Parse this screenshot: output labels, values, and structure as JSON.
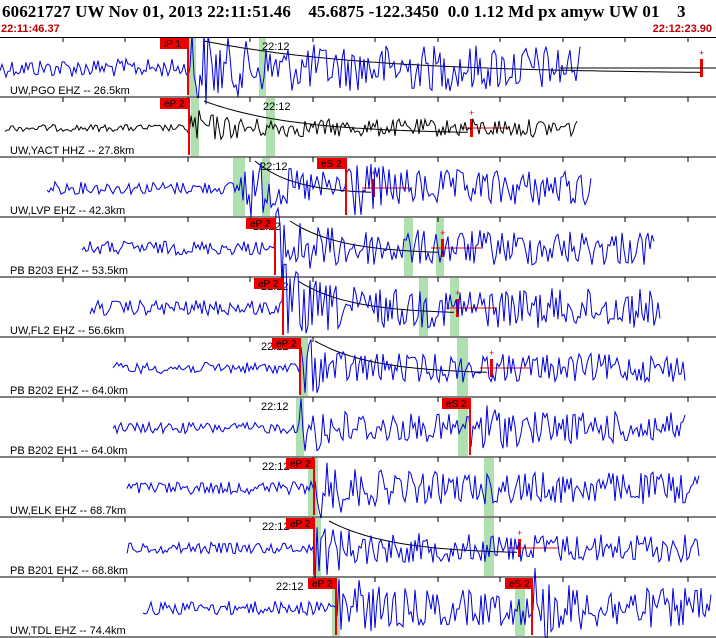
{
  "header": {
    "title": "60621727 UW Nov 01, 2013 22:11:51.46    45.6875 -122.3450  0.0 1.12 Md px amyw UW 01    3",
    "start_time": "22:11:46.37",
    "end_time": "22:12:23.90"
  },
  "colors": {
    "trace": "#0000dd",
    "pick": "#ee0000",
    "window": "#b0e0b0",
    "grid": "#000000",
    "time_text": "#c00000"
  },
  "minute_label": "22:12",
  "traces": [
    {
      "label": "UW,PGO EHZ -- 26.5km",
      "p_label": "iP 1",
      "s_label": ""
    },
    {
      "label": "UW,YACT HHZ -- 27.8km",
      "p_label": "eP 2",
      "s_label": ""
    },
    {
      "label": "UW,LVP EHZ -- 42.3km",
      "p_label": "",
      "s_label": "eS 2"
    },
    {
      "label": "PB B203 EHZ -- 53.5km",
      "p_label": "eP 2",
      "s_label": ""
    },
    {
      "label": "UW,FL2 EHZ -- 56.6km",
      "p_label": "eP 2",
      "s_label": ""
    },
    {
      "label": "PB B202 EHZ -- 64.0km",
      "p_label": "eP 2",
      "s_label": ""
    },
    {
      "label": "PB B202 EH1 -- 64.0km",
      "p_label": "",
      "s_label": "eS 2"
    },
    {
      "label": "UW,ELK EHZ -- 68.7km",
      "p_label": "eP 2",
      "s_label": ""
    },
    {
      "label": "PB B201 EHZ -- 68.8km",
      "p_label": "eP 2",
      "s_label": ""
    },
    {
      "label": "UW,TDL EHZ -- 74.4km",
      "p_label": "eP 2",
      "s_label": "eS 2"
    }
  ]
}
